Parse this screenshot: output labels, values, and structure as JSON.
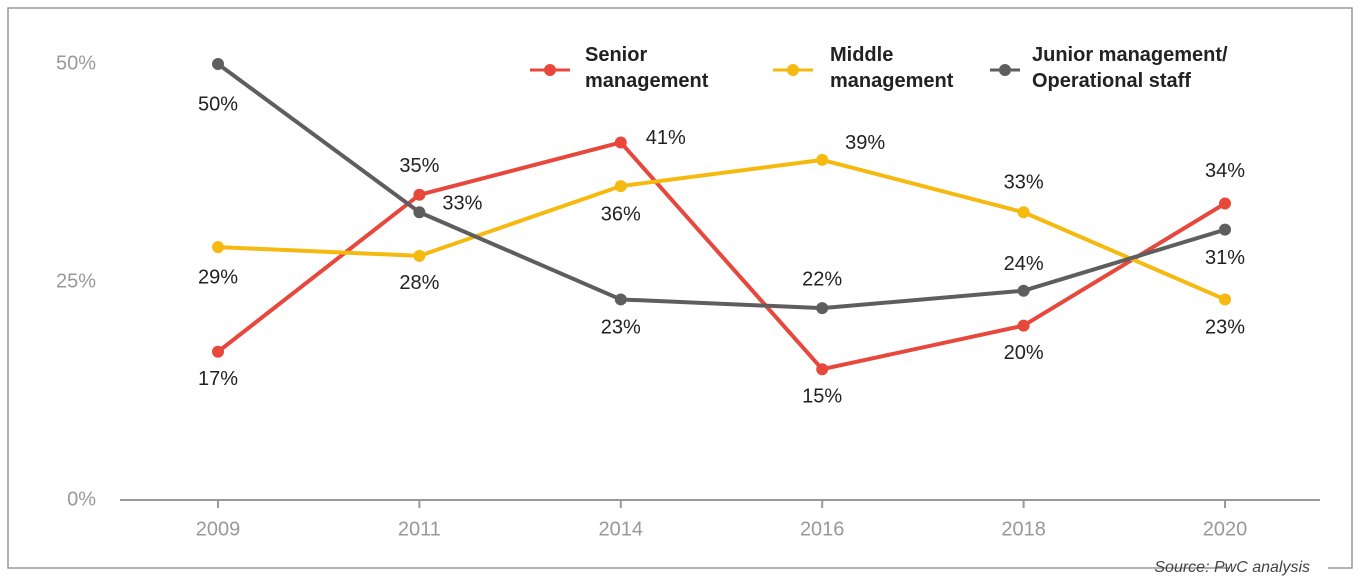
{
  "chart_data": {
    "type": "line",
    "categories": [
      "2009",
      "2011",
      "2014",
      "2016",
      "2018",
      "2020"
    ],
    "series": [
      {
        "name": "Senior management",
        "color": "#e8473c",
        "values": [
          17,
          35,
          41,
          15,
          20,
          34
        ],
        "value_labels": [
          "17%",
          "35%",
          "41%",
          "15%",
          "20%",
          "34%"
        ]
      },
      {
        "name": "Middle management",
        "color": "#f5b90f",
        "values": [
          29,
          28,
          36,
          39,
          33,
          23
        ],
        "value_labels": [
          "29%",
          "28%",
          "36%",
          "39%",
          "33%",
          "23%"
        ]
      },
      {
        "name": "Junior management/ Operational staff",
        "color": "#5e5e5e",
        "values": [
          50,
          33,
          23,
          22,
          24,
          31
        ],
        "value_labels": [
          "50%",
          "33%",
          "23%",
          "22%",
          "24%",
          "31%"
        ]
      }
    ],
    "ylim": [
      0,
      50
    ],
    "yticks": [
      {
        "value": 0,
        "label": "0%"
      },
      {
        "value": 25,
        "label": "25%"
      },
      {
        "value": 50,
        "label": "50%"
      }
    ],
    "grid": false,
    "source": "Source: PwC analysis"
  }
}
